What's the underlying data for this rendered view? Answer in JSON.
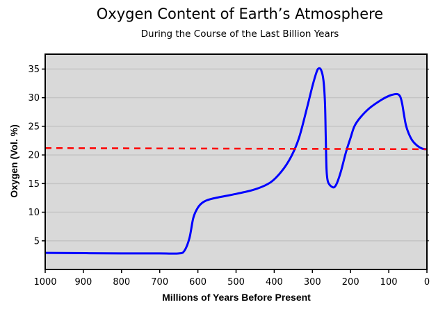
{
  "chart_data": {
    "type": "line",
    "title": "Oxygen Content of Earth’s Atmosphere",
    "subtitle": "During the Course of the Last Billion Years",
    "xlabel": "Millions of Years Before Present",
    "ylabel": "Oxygen (Vol. %)",
    "xlim": [
      1000,
      0
    ],
    "ylim": [
      0,
      37.6
    ],
    "x_reversed": true,
    "xticks": [
      1000,
      900,
      800,
      700,
      600,
      500,
      400,
      300,
      200,
      100,
      0
    ],
    "yticks": [
      5,
      10,
      15,
      20,
      25,
      30,
      35
    ],
    "grid": "horizontal",
    "background": "#d9d9d9",
    "series": [
      {
        "color": "#0000ff",
        "style": "solid",
        "x": [
          1000,
          800,
          700,
          650,
          635,
          622,
          612,
          600,
          585,
          560,
          500,
          450,
          410,
          380,
          355,
          335,
          315,
          300,
          290,
          284,
          277,
          271,
          267,
          265,
          263,
          260,
          255,
          248,
          242,
          235,
          225,
          212,
          200,
          190,
          175,
          150,
          120,
          100,
          85,
          76,
          70,
          65,
          60,
          55,
          48,
          38,
          25,
          12,
          0
        ],
        "y": [
          2.9,
          2.8,
          2.8,
          2.8,
          3.3,
          5.5,
          9,
          10.8,
          11.8,
          12.4,
          13.2,
          14,
          15.2,
          17.2,
          19.8,
          23,
          28,
          32,
          34.3,
          35.1,
          34.8,
          33,
          29,
          23,
          17.5,
          15.5,
          14.8,
          14.4,
          14.4,
          15.2,
          17.2,
          20.5,
          23,
          25,
          26.5,
          28.2,
          29.6,
          30.3,
          30.6,
          30.6,
          30.2,
          29,
          27,
          25.2,
          23.8,
          22.5,
          21.6,
          21.1,
          21
        ]
      },
      {
        "color": "#ff0000",
        "style": "dashed",
        "x": [
          1000,
          0
        ],
        "y": [
          21.2,
          21.0
        ]
      }
    ]
  }
}
